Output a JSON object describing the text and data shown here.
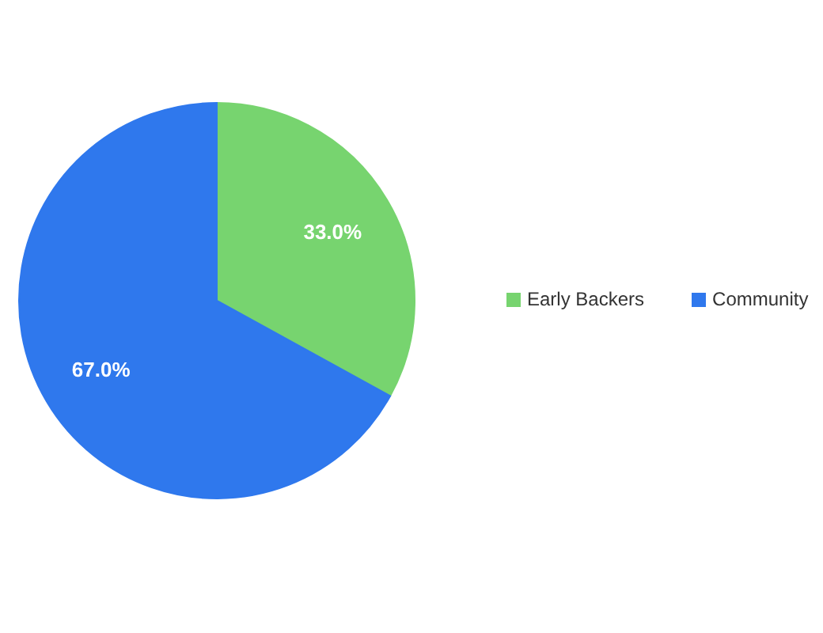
{
  "chart_data": {
    "type": "pie",
    "categories": [
      "Early Backers",
      "Community"
    ],
    "values": [
      33.0,
      67.0
    ],
    "colors": [
      "#77d46f",
      "#2f78ed"
    ],
    "value_labels": [
      "33.0%",
      "67.0%"
    ],
    "legend": "right"
  }
}
